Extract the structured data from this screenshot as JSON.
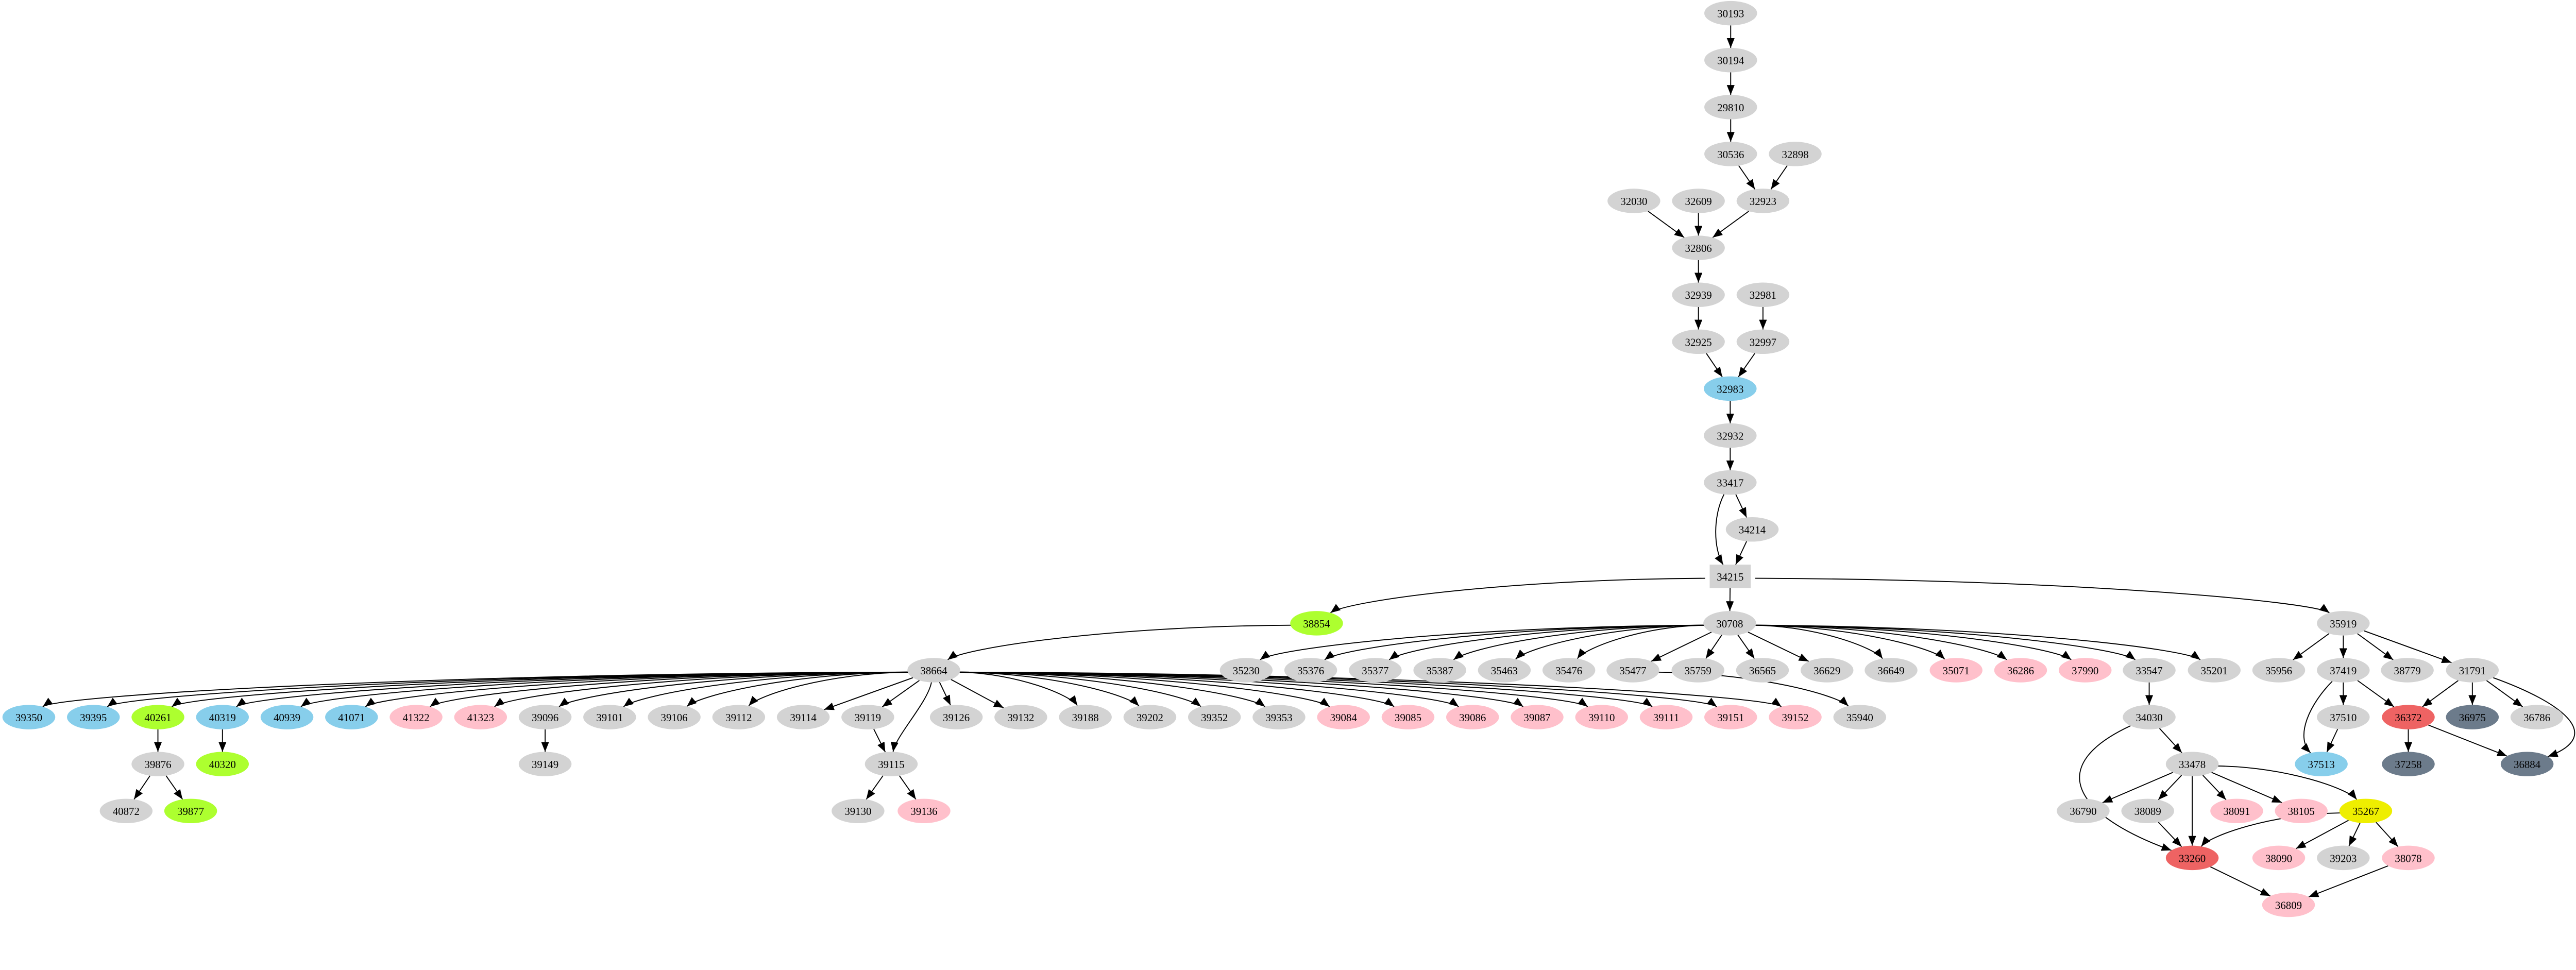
{
  "palette": {
    "gray": "#d3d3d3",
    "skyblue": "#87ceeb",
    "green": "#adff2f",
    "pink": "#ffc0cb",
    "red": "#ee6363",
    "slate": "#6c7b8b",
    "yellow": "#eeee00"
  },
  "nodes": [
    {
      "id": "30193",
      "color": "gray"
    },
    {
      "id": "30194",
      "color": "gray"
    },
    {
      "id": "29810",
      "color": "gray"
    },
    {
      "id": "30536",
      "color": "gray"
    },
    {
      "id": "32898",
      "color": "gray"
    },
    {
      "id": "32030",
      "color": "gray"
    },
    {
      "id": "32609",
      "color": "gray"
    },
    {
      "id": "32923",
      "color": "gray"
    },
    {
      "id": "32806",
      "color": "gray"
    },
    {
      "id": "32939",
      "color": "gray"
    },
    {
      "id": "32981",
      "color": "gray"
    },
    {
      "id": "32925",
      "color": "gray"
    },
    {
      "id": "32997",
      "color": "gray"
    },
    {
      "id": "32983",
      "color": "skyblue"
    },
    {
      "id": "32932",
      "color": "gray"
    },
    {
      "id": "33417",
      "color": "gray"
    },
    {
      "id": "34214",
      "color": "gray"
    },
    {
      "id": "34215",
      "color": "gray",
      "shape": "box"
    },
    {
      "id": "38854",
      "color": "green"
    },
    {
      "id": "30708",
      "color": "gray"
    },
    {
      "id": "35919",
      "color": "gray"
    },
    {
      "id": "38664",
      "color": "gray"
    },
    {
      "id": "35230",
      "color": "gray"
    },
    {
      "id": "35376",
      "color": "gray"
    },
    {
      "id": "35377",
      "color": "gray"
    },
    {
      "id": "35387",
      "color": "gray"
    },
    {
      "id": "35463",
      "color": "gray"
    },
    {
      "id": "35476",
      "color": "gray"
    },
    {
      "id": "35477",
      "color": "gray"
    },
    {
      "id": "35759",
      "color": "gray"
    },
    {
      "id": "36565",
      "color": "gray"
    },
    {
      "id": "36629",
      "color": "gray"
    },
    {
      "id": "36649",
      "color": "gray"
    },
    {
      "id": "35071",
      "color": "pink"
    },
    {
      "id": "36286",
      "color": "pink"
    },
    {
      "id": "37990",
      "color": "pink"
    },
    {
      "id": "33547",
      "color": "gray"
    },
    {
      "id": "35201",
      "color": "gray"
    },
    {
      "id": "35956",
      "color": "gray"
    },
    {
      "id": "37419",
      "color": "gray"
    },
    {
      "id": "38779",
      "color": "gray"
    },
    {
      "id": "31791",
      "color": "gray"
    },
    {
      "id": "39350",
      "color": "skyblue"
    },
    {
      "id": "39395",
      "color": "skyblue"
    },
    {
      "id": "40261",
      "color": "green"
    },
    {
      "id": "40319",
      "color": "skyblue"
    },
    {
      "id": "40939",
      "color": "skyblue"
    },
    {
      "id": "41071",
      "color": "skyblue"
    },
    {
      "id": "41322",
      "color": "pink"
    },
    {
      "id": "41323",
      "color": "pink"
    },
    {
      "id": "39096",
      "color": "gray"
    },
    {
      "id": "39101",
      "color": "gray"
    },
    {
      "id": "39106",
      "color": "gray"
    },
    {
      "id": "39112",
      "color": "gray"
    },
    {
      "id": "39114",
      "color": "gray"
    },
    {
      "id": "39119",
      "color": "gray"
    },
    {
      "id": "39126",
      "color": "gray"
    },
    {
      "id": "39132",
      "color": "gray"
    },
    {
      "id": "39188",
      "color": "gray"
    },
    {
      "id": "39202",
      "color": "gray"
    },
    {
      "id": "39352",
      "color": "gray"
    },
    {
      "id": "39353",
      "color": "gray"
    },
    {
      "id": "39084",
      "color": "pink"
    },
    {
      "id": "39085",
      "color": "pink"
    },
    {
      "id": "39086",
      "color": "pink"
    },
    {
      "id": "39087",
      "color": "pink"
    },
    {
      "id": "39110",
      "color": "pink"
    },
    {
      "id": "39111",
      "color": "pink"
    },
    {
      "id": "39151",
      "color": "pink"
    },
    {
      "id": "39152",
      "color": "pink"
    },
    {
      "id": "35940",
      "color": "gray"
    },
    {
      "id": "34030",
      "color": "gray"
    },
    {
      "id": "37510",
      "color": "gray"
    },
    {
      "id": "36372",
      "color": "red"
    },
    {
      "id": "36975",
      "color": "slate"
    },
    {
      "id": "36786",
      "color": "gray"
    },
    {
      "id": "39876",
      "color": "gray"
    },
    {
      "id": "40320",
      "color": "green"
    },
    {
      "id": "39149",
      "color": "gray"
    },
    {
      "id": "39115",
      "color": "gray"
    },
    {
      "id": "33478",
      "color": "gray"
    },
    {
      "id": "37513",
      "color": "skyblue"
    },
    {
      "id": "37258",
      "color": "slate"
    },
    {
      "id": "36884",
      "color": "slate"
    },
    {
      "id": "40872",
      "color": "gray"
    },
    {
      "id": "39877",
      "color": "green"
    },
    {
      "id": "39130",
      "color": "gray"
    },
    {
      "id": "39136",
      "color": "pink"
    },
    {
      "id": "36790",
      "color": "gray"
    },
    {
      "id": "38089",
      "color": "gray"
    },
    {
      "id": "38091",
      "color": "pink"
    },
    {
      "id": "38105",
      "color": "pink"
    },
    {
      "id": "35267",
      "color": "yellow"
    },
    {
      "id": "33260",
      "color": "red"
    },
    {
      "id": "38090",
      "color": "pink"
    },
    {
      "id": "39203",
      "color": "gray"
    },
    {
      "id": "38078",
      "color": "pink"
    },
    {
      "id": "36809",
      "color": "pink"
    }
  ],
  "edges": [
    [
      "30193",
      "30194"
    ],
    [
      "30194",
      "29810"
    ],
    [
      "29810",
      "30536"
    ],
    [
      "30536",
      "32923"
    ],
    [
      "32898",
      "32923"
    ],
    [
      "32030",
      "32806"
    ],
    [
      "32609",
      "32806"
    ],
    [
      "32923",
      "32806"
    ],
    [
      "32806",
      "32939"
    ],
    [
      "32939",
      "32925"
    ],
    [
      "32981",
      "32997"
    ],
    [
      "32925",
      "32983"
    ],
    [
      "32997",
      "32983"
    ],
    [
      "32983",
      "32932"
    ],
    [
      "32932",
      "33417"
    ],
    [
      "33417",
      "34214"
    ],
    [
      "33417",
      "34215"
    ],
    [
      "34214",
      "34215"
    ],
    [
      "34215",
      "38854"
    ],
    [
      "34215",
      "30708"
    ],
    [
      "34215",
      "35919"
    ],
    [
      "38854",
      "38664"
    ],
    [
      "38664",
      "39350"
    ],
    [
      "38664",
      "39395"
    ],
    [
      "38664",
      "40261"
    ],
    [
      "38664",
      "40319"
    ],
    [
      "38664",
      "40939"
    ],
    [
      "38664",
      "41071"
    ],
    [
      "38664",
      "41322"
    ],
    [
      "38664",
      "41323"
    ],
    [
      "38664",
      "39096"
    ],
    [
      "38664",
      "39101"
    ],
    [
      "38664",
      "39106"
    ],
    [
      "38664",
      "39112"
    ],
    [
      "38664",
      "39114"
    ],
    [
      "38664",
      "39119"
    ],
    [
      "38664",
      "39115"
    ],
    [
      "38664",
      "39126"
    ],
    [
      "38664",
      "39132"
    ],
    [
      "38664",
      "39188"
    ],
    [
      "38664",
      "39202"
    ],
    [
      "38664",
      "39352"
    ],
    [
      "38664",
      "39353"
    ],
    [
      "38664",
      "39084"
    ],
    [
      "38664",
      "39085"
    ],
    [
      "38664",
      "39086"
    ],
    [
      "38664",
      "39087"
    ],
    [
      "38664",
      "39110"
    ],
    [
      "38664",
      "39111"
    ],
    [
      "38664",
      "39151"
    ],
    [
      "38664",
      "39152"
    ],
    [
      "40261",
      "39876"
    ],
    [
      "40319",
      "40320"
    ],
    [
      "39096",
      "39149"
    ],
    [
      "39876",
      "40872"
    ],
    [
      "39876",
      "39877"
    ],
    [
      "39119",
      "39115"
    ],
    [
      "39115",
      "39130"
    ],
    [
      "39115",
      "39136"
    ],
    [
      "30708",
      "35230"
    ],
    [
      "30708",
      "35376"
    ],
    [
      "30708",
      "35377"
    ],
    [
      "30708",
      "35387"
    ],
    [
      "30708",
      "35463"
    ],
    [
      "30708",
      "35476"
    ],
    [
      "30708",
      "35477"
    ],
    [
      "30708",
      "35759"
    ],
    [
      "30708",
      "36565"
    ],
    [
      "30708",
      "36629"
    ],
    [
      "30708",
      "36649"
    ],
    [
      "30708",
      "35071"
    ],
    [
      "30708",
      "36286"
    ],
    [
      "30708",
      "37990"
    ],
    [
      "30708",
      "33547"
    ],
    [
      "30708",
      "35201"
    ],
    [
      "35477",
      "35940"
    ],
    [
      "33547",
      "34030"
    ],
    [
      "34030",
      "33478"
    ],
    [
      "34030",
      "33260"
    ],
    [
      "33478",
      "36790"
    ],
    [
      "33478",
      "38089"
    ],
    [
      "33478",
      "33260"
    ],
    [
      "33478",
      "38091"
    ],
    [
      "33478",
      "38105"
    ],
    [
      "33478",
      "35267"
    ],
    [
      "38089",
      "33260"
    ],
    [
      "35267",
      "33260"
    ],
    [
      "35267",
      "38090"
    ],
    [
      "35267",
      "39203"
    ],
    [
      "35267",
      "38078"
    ],
    [
      "33260",
      "36809"
    ],
    [
      "38078",
      "36809"
    ],
    [
      "35919",
      "35956"
    ],
    [
      "35919",
      "37419"
    ],
    [
      "35919",
      "38779"
    ],
    [
      "35919",
      "31791"
    ],
    [
      "37419",
      "37513"
    ],
    [
      "37419",
      "37510"
    ],
    [
      "37419",
      "36372"
    ],
    [
      "37510",
      "37513"
    ],
    [
      "31791",
      "36372"
    ],
    [
      "31791",
      "36975"
    ],
    [
      "31791",
      "36786"
    ],
    [
      "31791",
      "36884"
    ],
    [
      "36372",
      "37258"
    ],
    [
      "36372",
      "36884"
    ]
  ]
}
